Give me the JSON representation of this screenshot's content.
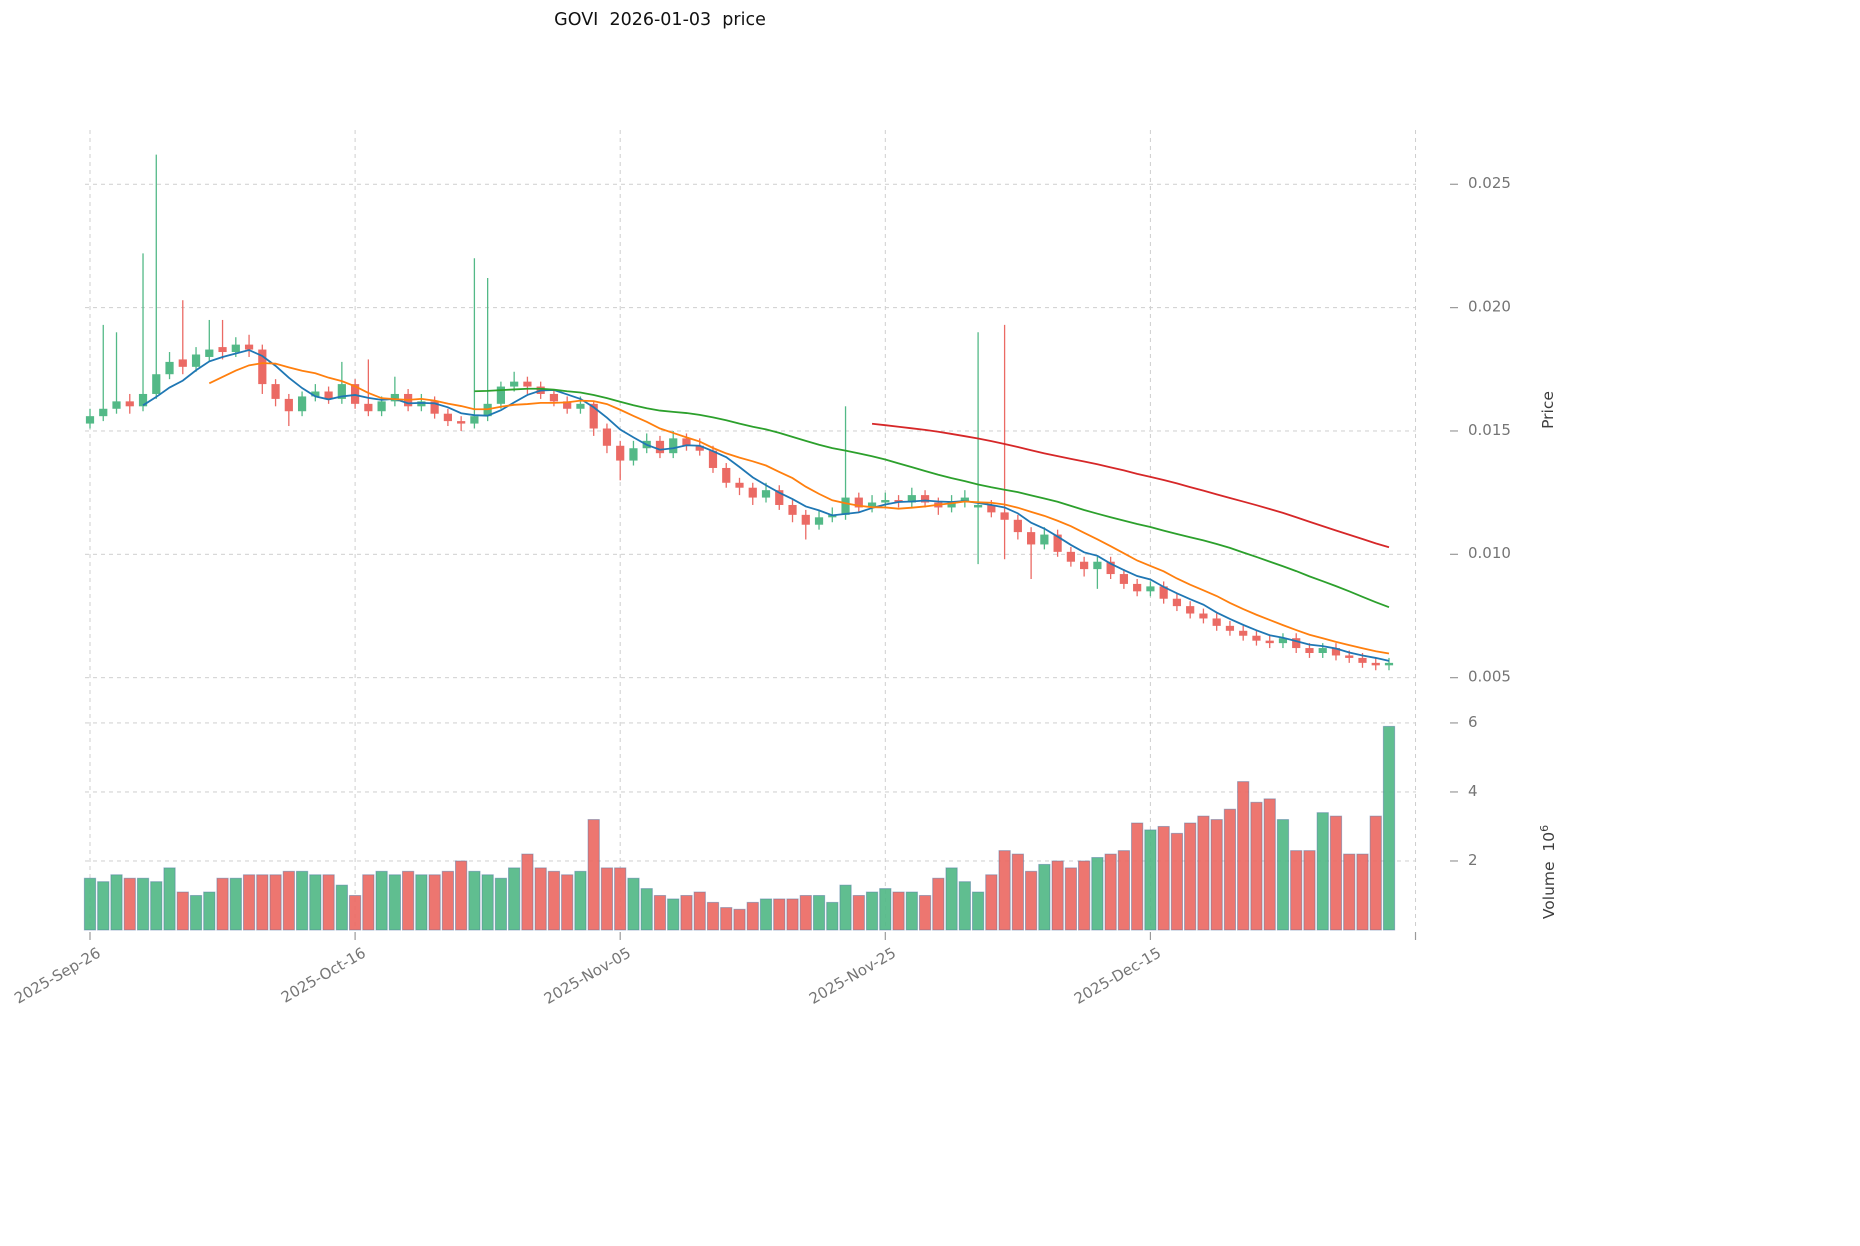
{
  "title": "GOVI  2026-01-03  price",
  "axes": {
    "price_label": "Price",
    "volume_label_base": "Volume  10",
    "volume_label_exp": "6",
    "price_ticks": [
      {
        "v": 5,
        "label": "0.005"
      },
      {
        "v": 10,
        "label": "0.010"
      },
      {
        "v": 15,
        "label": "0.015"
      },
      {
        "v": 20,
        "label": "0.020"
      },
      {
        "v": 25,
        "label": "0.025"
      }
    ],
    "volume_ticks": [
      {
        "v": 2,
        "label": "2"
      },
      {
        "v": 4,
        "label": "4"
      },
      {
        "v": 6,
        "label": "6"
      }
    ],
    "x_ticks": [
      {
        "i": 0,
        "label": "2025-Sep-26"
      },
      {
        "i": 20,
        "label": "2025-Oct-16"
      },
      {
        "i": 40,
        "label": "2025-Nov-05"
      },
      {
        "i": 60,
        "label": "2025-Nov-25"
      },
      {
        "i": 80,
        "label": "2025-Dec-15"
      },
      {
        "i": 100,
        "label": ""
      }
    ]
  },
  "style": {
    "up_color": "#53b987",
    "down_color": "#eb6a64",
    "ma_colors": [
      "#1f77b4",
      "#ff7f0e",
      "#2ca02c",
      "#d62728"
    ],
    "grid_color": "#cfcfcf",
    "tick_mark_color": "#9a9a9a",
    "tick_text_color": "#757575",
    "volume_bar_edge": "rgba(70,110,160,0.45)",
    "background": "#ffffff"
  },
  "chart_data": {
    "type": "candlestick",
    "symbol": "GOVI",
    "price_unit": 0.001,
    "volume_unit": 1000000,
    "price_ylim": [
      4.5,
      27.2
    ],
    "volume_ylim": [
      0,
      6.23
    ],
    "ma_windows": [
      5,
      10,
      30,
      60
    ],
    "open": [
      15.3,
      15.6,
      15.9,
      16.2,
      16.0,
      16.5,
      17.3,
      17.9,
      17.6,
      18.0,
      18.4,
      18.2,
      18.5,
      18.3,
      16.9,
      16.3,
      15.8,
      16.4,
      16.6,
      16.3,
      16.9,
      16.1,
      15.8,
      16.2,
      16.5,
      16.0,
      16.2,
      15.7,
      15.4,
      15.3,
      15.6,
      16.1,
      16.8,
      17.0,
      16.8,
      16.5,
      16.2,
      15.9,
      16.1,
      15.1,
      14.4,
      13.8,
      14.3,
      14.6,
      14.1,
      14.7,
      14.4,
      14.2,
      13.5,
      12.9,
      12.7,
      12.3,
      12.6,
      12.0,
      11.6,
      11.2,
      11.5,
      11.6,
      12.3,
      11.9,
      12.1,
      12.2,
      12.1,
      12.4,
      12.1,
      11.9,
      12.1,
      11.9,
      12.0,
      11.7,
      11.4,
      10.9,
      10.4,
      10.8,
      10.1,
      9.7,
      9.4,
      9.7,
      9.2,
      8.8,
      8.5,
      8.7,
      8.2,
      7.9,
      7.6,
      7.4,
      7.1,
      6.9,
      6.7,
      6.5,
      6.4,
      6.6,
      6.2,
      6.0,
      6.2,
      5.9,
      5.8,
      5.6,
      5.5
    ],
    "high": [
      15.9,
      19.3,
      19.0,
      16.5,
      22.2,
      26.2,
      18.2,
      20.3,
      18.4,
      19.5,
      19.5,
      18.8,
      18.9,
      18.5,
      17.1,
      16.5,
      16.6,
      16.9,
      16.8,
      17.8,
      17.1,
      17.9,
      16.4,
      17.2,
      16.7,
      16.5,
      16.4,
      15.9,
      15.6,
      22.0,
      21.2,
      17.0,
      17.4,
      17.2,
      17.0,
      16.7,
      16.4,
      16.4,
      16.2,
      15.3,
      14.6,
      14.6,
      14.9,
      14.8,
      15.0,
      14.9,
      14.7,
      14.4,
      13.7,
      13.1,
      12.9,
      12.9,
      12.8,
      12.2,
      11.8,
      11.8,
      11.9,
      16.0,
      12.5,
      12.4,
      12.5,
      12.4,
      12.7,
      12.6,
      12.3,
      12.4,
      12.6,
      19.0,
      12.2,
      19.3,
      11.6,
      11.1,
      11.1,
      11.0,
      10.3,
      9.9,
      9.9,
      9.9,
      9.4,
      9.0,
      8.9,
      8.9,
      8.4,
      8.1,
      7.8,
      7.6,
      7.3,
      7.1,
      6.9,
      6.7,
      6.8,
      6.8,
      6.4,
      6.4,
      6.4,
      6.1,
      6.0,
      5.8,
      5.8
    ],
    "low": [
      15.1,
      15.4,
      15.7,
      15.7,
      15.8,
      16.3,
      17.1,
      17.3,
      17.4,
      17.8,
      17.9,
      18.0,
      18.0,
      16.5,
      16.0,
      15.2,
      15.6,
      16.2,
      16.1,
      16.1,
      15.9,
      15.6,
      15.6,
      16.0,
      15.8,
      15.8,
      15.5,
      15.2,
      15.0,
      15.1,
      15.4,
      15.9,
      16.6,
      16.5,
      16.3,
      16.0,
      15.7,
      15.7,
      14.8,
      14.1,
      13.0,
      13.6,
      14.1,
      13.9,
      13.9,
      14.2,
      14.0,
      13.3,
      12.7,
      12.4,
      12.0,
      12.1,
      11.8,
      11.3,
      10.6,
      11.0,
      11.3,
      11.4,
      11.7,
      11.7,
      11.9,
      11.9,
      11.9,
      11.9,
      11.6,
      11.7,
      11.9,
      9.6,
      11.5,
      9.8,
      10.6,
      9.0,
      10.2,
      9.9,
      9.5,
      9.1,
      8.6,
      9.0,
      8.6,
      8.3,
      8.3,
      8.0,
      7.7,
      7.4,
      7.2,
      6.9,
      6.7,
      6.5,
      6.3,
      6.2,
      6.2,
      6.0,
      5.8,
      5.8,
      5.7,
      5.6,
      5.4,
      5.3,
      5.3
    ],
    "close": [
      15.6,
      15.9,
      16.2,
      16.0,
      16.5,
      17.3,
      17.8,
      17.6,
      18.1,
      18.3,
      18.2,
      18.5,
      18.3,
      16.9,
      16.3,
      15.8,
      16.4,
      16.6,
      16.3,
      16.9,
      16.1,
      15.8,
      16.2,
      16.5,
      16.0,
      16.2,
      15.7,
      15.4,
      15.3,
      15.6,
      16.1,
      16.8,
      17.0,
      16.8,
      16.5,
      16.2,
      15.9,
      16.1,
      15.1,
      14.4,
      13.8,
      14.3,
      14.6,
      14.1,
      14.7,
      14.4,
      14.2,
      13.5,
      12.9,
      12.7,
      12.3,
      12.6,
      12.0,
      11.6,
      11.2,
      11.5,
      11.6,
      12.3,
      11.9,
      12.1,
      12.2,
      12.1,
      12.4,
      12.1,
      11.9,
      12.1,
      12.3,
      12.0,
      11.7,
      11.4,
      10.9,
      10.4,
      10.8,
      10.1,
      9.7,
      9.4,
      9.7,
      9.2,
      8.8,
      8.5,
      8.7,
      8.2,
      7.9,
      7.6,
      7.4,
      7.1,
      6.9,
      6.7,
      6.5,
      6.4,
      6.6,
      6.2,
      6.0,
      6.2,
      5.9,
      5.8,
      5.6,
      5.5,
      5.6
    ],
    "volume": [
      1.5,
      1.4,
      1.6,
      1.5,
      1.5,
      1.4,
      1.8,
      1.1,
      1.0,
      1.1,
      1.5,
      1.5,
      1.6,
      1.6,
      1.6,
      1.7,
      1.7,
      1.6,
      1.6,
      1.3,
      1.0,
      1.6,
      1.7,
      1.6,
      1.7,
      1.6,
      1.6,
      1.7,
      2.0,
      1.7,
      1.6,
      1.5,
      1.8,
      2.2,
      1.8,
      1.7,
      1.6,
      1.7,
      3.2,
      1.8,
      1.8,
      1.5,
      1.2,
      1.0,
      0.9,
      1.0,
      1.1,
      0.8,
      0.65,
      0.6,
      0.8,
      0.9,
      0.9,
      0.9,
      1.0,
      1.0,
      0.8,
      1.3,
      1.0,
      1.1,
      1.2,
      1.1,
      1.1,
      1.0,
      1.5,
      1.8,
      1.4,
      1.1,
      1.6,
      2.3,
      2.2,
      1.7,
      1.9,
      2.0,
      1.8,
      2.0,
      2.1,
      2.2,
      2.3,
      3.1,
      2.9,
      3.0,
      2.8,
      3.1,
      3.3,
      3.2,
      3.5,
      4.3,
      3.7,
      3.8,
      3.2,
      2.3,
      2.3,
      3.4,
      3.3,
      2.2,
      2.2,
      3.3,
      5.9
    ]
  }
}
